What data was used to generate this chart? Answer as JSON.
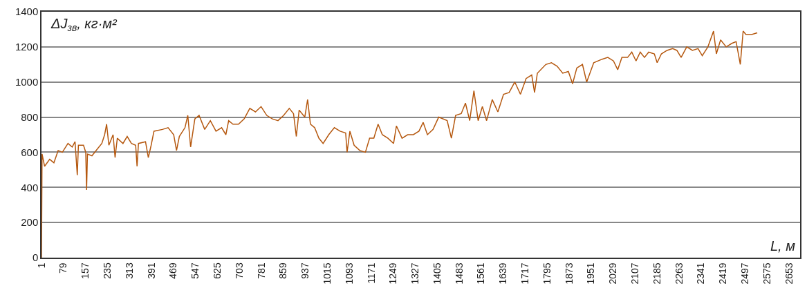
{
  "chart_data": {
    "type": "line",
    "xlabel": "L, м",
    "ylabel": "ΔJ$_{зв}$, кг·м²",
    "xlim": [
      1,
      2692
    ],
    "xticks": [
      1,
      79,
      157,
      235,
      313,
      391,
      469,
      547,
      625,
      703,
      781,
      859,
      937,
      1015,
      1093,
      1171,
      1249,
      1327,
      1405,
      1483,
      1561,
      1639,
      1717,
      1795,
      1873,
      1951,
      2029,
      2107,
      2185,
      2263,
      2341,
      2419,
      2497,
      2575,
      2653
    ],
    "ylim": [
      0,
      1400
    ],
    "yticks": [
      0,
      200,
      400,
      600,
      800,
      1000,
      1200,
      1400
    ],
    "grid": "y",
    "marker": "none",
    "line_style": "solid",
    "series": [
      {
        "color": "#b5580f",
        "x": [
          1,
          3,
          12,
          30,
          45,
          60,
          75,
          95,
          110,
          120,
          128,
          132,
          150,
          158,
          161,
          164,
          180,
          200,
          215,
          225,
          232,
          240,
          255,
          262,
          270,
          290,
          305,
          320,
          335,
          340,
          345,
          370,
          380,
          390,
          400,
          430,
          450,
          470,
          480,
          490,
          510,
          520,
          530,
          545,
          560,
          580,
          600,
          620,
          640,
          655,
          665,
          680,
          700,
          720,
          740,
          760,
          780,
          800,
          820,
          840,
          860,
          880,
          895,
          905,
          915,
          935,
          945,
          955,
          970,
          985,
          1000,
          1020,
          1040,
          1060,
          1080,
          1085,
          1095,
          1110,
          1130,
          1150,
          1165,
          1180,
          1195,
          1210,
          1230,
          1250,
          1260,
          1280,
          1300,
          1320,
          1340,
          1355,
          1370,
          1390,
          1410,
          1440,
          1455,
          1470,
          1490,
          1505,
          1520,
          1535,
          1550,
          1565,
          1580,
          1600,
          1620,
          1640,
          1660,
          1680,
          1700,
          1720,
          1740,
          1750,
          1760,
          1790,
          1810,
          1830,
          1850,
          1870,
          1885,
          1900,
          1920,
          1935,
          1960,
          1990,
          2010,
          2030,
          2045,
          2060,
          2080,
          2095,
          2110,
          2125,
          2140,
          2155,
          2175,
          2185,
          2200,
          2220,
          2240,
          2255,
          2270,
          2290,
          2310,
          2330,
          2345,
          2365,
          2385,
          2395,
          2410,
          2430,
          2450,
          2465,
          2480,
          2490,
          2500,
          2520,
          2540
        ],
        "values": [
          0,
          590,
          520,
          560,
          540,
          610,
          600,
          650,
          630,
          660,
          470,
          640,
          640,
          600,
          385,
          590,
          580,
          620,
          650,
          700,
          760,
          640,
          700,
          570,
          680,
          650,
          690,
          650,
          640,
          520,
          650,
          660,
          570,
          640,
          720,
          730,
          740,
          700,
          610,
          690,
          740,
          810,
          630,
          790,
          810,
          730,
          780,
          720,
          740,
          700,
          780,
          760,
          760,
          790,
          850,
          830,
          860,
          810,
          790,
          780,
          810,
          850,
          820,
          690,
          840,
          800,
          900,
          760,
          740,
          680,
          650,
          700,
          740,
          720,
          710,
          600,
          720,
          640,
          610,
          600,
          680,
          680,
          760,
          700,
          680,
          650,
          750,
          680,
          700,
          700,
          720,
          770,
          700,
          730,
          800,
          780,
          680,
          810,
          820,
          880,
          780,
          950,
          780,
          860,
          780,
          900,
          830,
          930,
          940,
          1000,
          930,
          1020,
          1040,
          940,
          1050,
          1100,
          1110,
          1090,
          1050,
          1060,
          990,
          1080,
          1100,
          1000,
          1110,
          1130,
          1140,
          1120,
          1070,
          1140,
          1140,
          1170,
          1120,
          1170,
          1140,
          1170,
          1160,
          1110,
          1160,
          1180,
          1190,
          1180,
          1140,
          1200,
          1180,
          1190,
          1150,
          1200,
          1290,
          1160,
          1240,
          1200,
          1220,
          1230,
          1100,
          1290,
          1270,
          1270,
          1280
        ]
      }
    ]
  }
}
